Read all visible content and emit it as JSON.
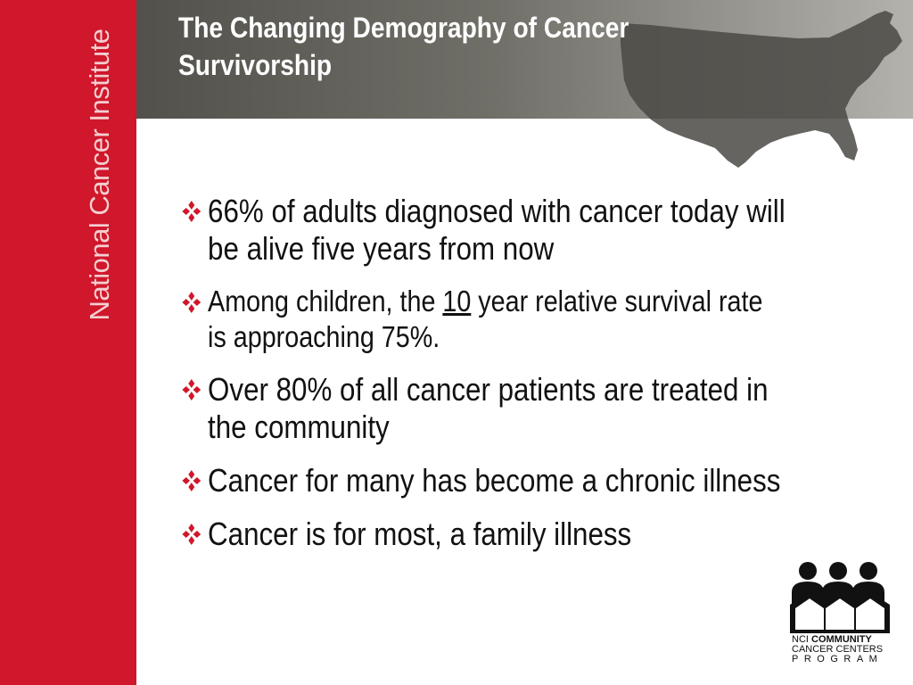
{
  "sidebar": {
    "org_name": "National Cancer Institute",
    "color": "#d0172b"
  },
  "header": {
    "title_line1": "The Changing Demography of Cancer",
    "title_line2": "Survivorship",
    "background_color": "#5e5d57",
    "map_icon": "us-map-icon"
  },
  "bullets": [
    {
      "icon": "diamond-bullet-icon",
      "text_line1": "66% of adults diagnosed with cancer today will",
      "text_line2": "be alive five years from now"
    },
    {
      "icon": "diamond-bullet-icon",
      "text_before": "Among children, the ",
      "text_underlined": "10",
      "text_after": " year relative survival rate",
      "text_line2": "is approaching 75%."
    },
    {
      "icon": "diamond-bullet-icon",
      "text_line1": "Over 80% of all cancer patients are treated in",
      "text_line2": "the community"
    },
    {
      "icon": "diamond-bullet-icon",
      "text_line1": "Cancer for many has become a chronic illness"
    },
    {
      "icon": "diamond-bullet-icon",
      "text_line1": "Cancer is for most, a family illness"
    }
  ],
  "logo": {
    "icon": "people-houses-icon",
    "line1_prefix": "NCI ",
    "line1_bold": "COMMUNITY",
    "line2": "CANCER CENTERS",
    "line3": "PROGRAM"
  },
  "colors": {
    "accent_red": "#d0172b",
    "text": "#111111",
    "title_text": "#ffffff"
  }
}
